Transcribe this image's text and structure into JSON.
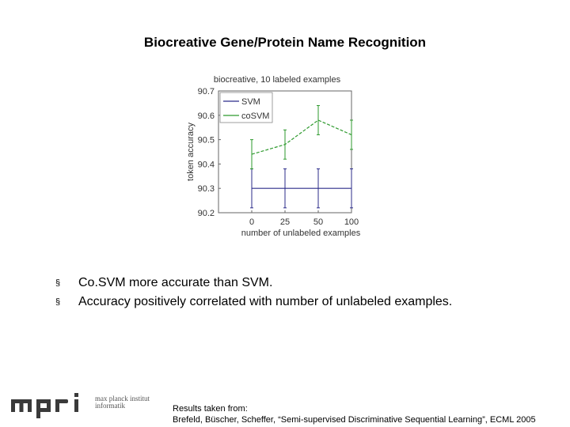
{
  "slide": {
    "title": "Biocreative Gene/Protein Name Recognition",
    "bullet_marker": "§",
    "bullets": [
      "Co.SVM more accurate than SVM.",
      "Accuracy positively correlated with number of unlabeled examples."
    ],
    "logo_line1": "max planck institut",
    "logo_line2": "informatik",
    "credit_line1": "Results taken from:",
    "credit_line2": "Brefeld, Büscher, Scheffer, “Semi-supervised Discriminative Sequential Learning”, ECML 2005"
  },
  "colors": {
    "svm": "#2b2b8a",
    "cosvm": "#2e9a2e"
  },
  "chart_data": {
    "type": "line",
    "title": "biocreative, 10 labeled examples",
    "xlabel": "number of unlabeled examples",
    "ylabel": "token accuracy",
    "categories": [
      "0",
      "25",
      "50",
      "100"
    ],
    "yticks": [
      "90.2",
      "90.3",
      "90.4",
      "90.5",
      "90.6",
      "90.7"
    ],
    "ylim": [
      90.2,
      90.7
    ],
    "legend_position": "top-left",
    "grid": false,
    "series": [
      {
        "name": "SVM",
        "style": "solid",
        "values": [
          90.3,
          90.3,
          90.3,
          90.3
        ],
        "err": [
          0.08,
          0.08,
          0.08,
          0.08
        ]
      },
      {
        "name": "coSVM",
        "style": "dashed",
        "values": [
          90.44,
          90.48,
          90.58,
          90.52
        ],
        "err": [
          0.06,
          0.06,
          0.06,
          0.06
        ]
      }
    ]
  }
}
